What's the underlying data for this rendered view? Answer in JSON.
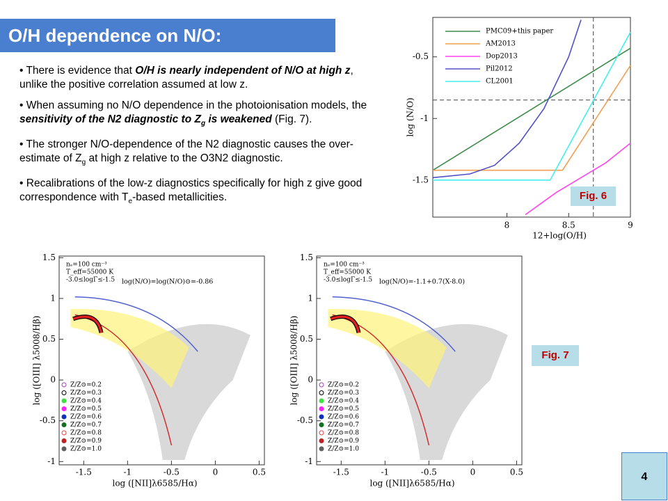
{
  "title": "O/H dependence on N/O:",
  "bullet": "•",
  "bullets": [
    [
      "There is evidence that ",
      "O/H is nearly independent of N/O at high z",
      ", unlike the positive correlation assumed at low z."
    ],
    [
      "When assuming no N/O dependence in the photoionisation models, the ",
      "sensitivity of the N2 diagnostic to Z",
      "g",
      " is weakened",
      " (Fig. 7)."
    ],
    [
      "The stronger N/O-dependence of the N2 diagnostic causes the over-estimate of Z",
      "g",
      " at high z relative to the O3N2 diagnostic."
    ],
    [
      "Recalibrations of the low-z diagnostics specifically for high z give good correspondence with T",
      "e",
      "-based metallicities."
    ]
  ],
  "fig6": {
    "label": "Fig. 6",
    "chart_data": {
      "type": "line",
      "xlabel": "12+log(O/H)",
      "ylabel": "log (N/O)",
      "xlim": [
        7.4,
        9
      ],
      "ylim": [
        -1.8,
        -0.18
      ],
      "xticks": [
        8,
        8.5,
        9
      ],
      "yticks": [
        -0.5,
        -1,
        -1.5
      ],
      "reference_x": 8.7,
      "reference_y": -0.85,
      "series": [
        {
          "name": "PMC09+this paper",
          "color": "#3c8c4a",
          "x": [
            7.4,
            9
          ],
          "y": [
            -1.42,
            -0.43
          ]
        },
        {
          "name": "AM2013",
          "color": "#f0a050",
          "x": [
            7.4,
            8.45,
            9
          ],
          "y": [
            -1.42,
            -1.42,
            -0.57
          ]
        },
        {
          "name": "Dop2013",
          "color": "#ff44ee",
          "x": [
            8.15,
            8.4,
            8.6,
            8.8,
            9
          ],
          "y": [
            -1.78,
            -1.6,
            -1.48,
            -1.36,
            -1.2
          ]
        },
        {
          "name": "Pil2012",
          "color": "#5050c8",
          "x": [
            7.4,
            7.7,
            7.9,
            8.1,
            8.3,
            8.5,
            8.6
          ],
          "y": [
            -1.48,
            -1.45,
            -1.38,
            -1.2,
            -0.92,
            -0.5,
            -0.2
          ]
        },
        {
          "name": "CL2001",
          "color": "#44eeee",
          "x": [
            7.4,
            8.35,
            9
          ],
          "y": [
            -1.5,
            -1.5,
            -0.3
          ]
        }
      ]
    }
  },
  "fig7": {
    "label": "Fig. 7",
    "xlabel": "log ([NII]λ6585/Hα)",
    "ylabel": "log ([OIII] λ5008/Hβ)",
    "xlim": [
      -1.78,
      0.56
    ],
    "ylim": [
      -1.04,
      1.52
    ],
    "xticks": [
      -1.5,
      -1,
      -0.5,
      0,
      0.5
    ],
    "yticks": [
      -1,
      -0.5,
      0,
      0.5,
      1,
      1.5
    ],
    "conditions": [
      "nₑ=100 cm⁻³",
      "T_eff=55000 K",
      "-3.0≤logΓ≤-1.5"
    ],
    "legend": [
      "Z/Z⊙=0.2",
      "Z/Z⊙=0.3",
      "Z/Z⊙=0.4",
      "Z/Z⊙=0.5",
      "Z/Z⊙=0.6",
      "Z/Z⊙=0.7",
      "Z/Z⊙=0.8",
      "Z/Z⊙=0.9",
      "Z/Z⊙=1.0"
    ],
    "panels": [
      {
        "annotation": "log(N/O)=log(N/O)⊙=-0.86"
      },
      {
        "annotation": "log(N/O)=-1.1+0.7(X-8.0)"
      }
    ]
  },
  "page_number": "4"
}
